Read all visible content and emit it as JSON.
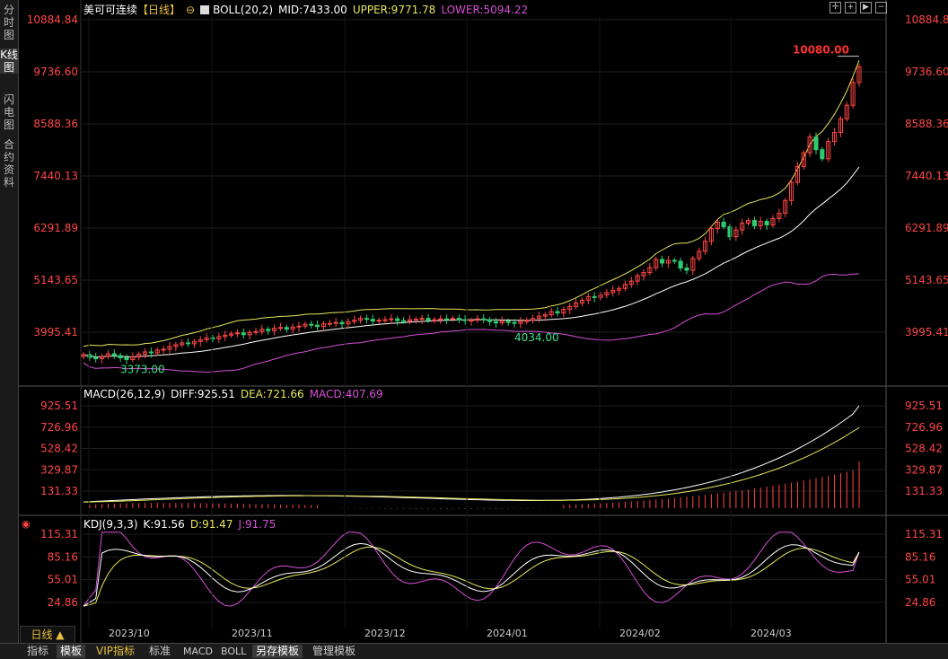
{
  "left_tabs": [
    {
      "label": "分时图",
      "active": false
    },
    {
      "label": "K线图",
      "active": true
    },
    {
      "label": "闪电图",
      "active": false
    },
    {
      "label": "合约资料",
      "active": false
    }
  ],
  "header": {
    "instrument": "美可可连续",
    "period": "【日线】",
    "boll": "BOLL(20,2)",
    "mid": "MID:7433.00",
    "upper": "UPPER:9771.78",
    "lower": "LOWER:5094.22"
  },
  "macd_header": {
    "name": "MACD(26,12,9)",
    "diff": "DIFF:925.51",
    "dea": "DEA:721.66",
    "macd": "MACD:407.69"
  },
  "kdj_header": {
    "name": "KDJ(9,3,3)",
    "k": "K:91.56",
    "d": "D:91.47",
    "j": "J:91.75"
  },
  "price_axis": [
    "10884.84",
    "9736.60",
    "8588.36",
    "7440.13",
    "6291.89",
    "5143.65",
    "3995.41"
  ],
  "macd_axis": [
    "925.51",
    "726.96",
    "528.42",
    "329.87",
    "131.33"
  ],
  "kdj_axis": [
    "115.31",
    "85.16",
    "55.01",
    "24.86"
  ],
  "date_labels": [
    "2023/10",
    "2023/11",
    "2023/12",
    "2024/01",
    "2024/02",
    "2024/03"
  ],
  "annotations": {
    "high": "10080.00",
    "low1": "3373.00",
    "low2": "4034.00"
  },
  "period_button": "日线 ▲",
  "bottom_tabs": [
    {
      "label": "指标",
      "active": false
    },
    {
      "label": "模板",
      "active": true
    },
    {
      "label": "VIP指标",
      "active": false,
      "accent": true
    },
    {
      "label": "标准",
      "active": false
    },
    {
      "label": "MACD",
      "active": false
    },
    {
      "label": "BOLL",
      "active": false
    },
    {
      "label": "另存模板",
      "active": true
    },
    {
      "label": "管理模板",
      "active": false
    }
  ],
  "toolbar_icons": [
    "crosshair-icon",
    "zoom-in-icon",
    "play-icon",
    "zoom-out-icon"
  ],
  "colors": {
    "up": "#ff4545",
    "down": "#2ecc71",
    "axis": "#ff4545",
    "mid": "#ffffff",
    "upper": "#e6e65a",
    "lower": "#d64fd6",
    "diff": "#ffffff",
    "dea": "#e6e65a",
    "k": "#ffffff",
    "d": "#e6e65a",
    "j": "#d64fd6",
    "annot_low": "#3ee08a"
  },
  "chart_data": {
    "type": "candlestick",
    "price_range": [
      3373.0,
      10884.84
    ],
    "closes": [
      3500,
      3440,
      3410,
      3460,
      3520,
      3480,
      3430,
      3390,
      3450,
      3510,
      3560,
      3540,
      3600,
      3620,
      3680,
      3720,
      3760,
      3740,
      3790,
      3830,
      3870,
      3850,
      3900,
      3930,
      3960,
      3980,
      3940,
      3990,
      4010,
      4060,
      4030,
      4080,
      4100,
      4060,
      4110,
      4130,
      4170,
      4150,
      4120,
      4180,
      4190,
      4210,
      4180,
      4230,
      4260,
      4300,
      4280,
      4240,
      4260,
      4270,
      4290,
      4250,
      4240,
      4270,
      4280,
      4300,
      4260,
      4270,
      4290,
      4280,
      4300,
      4270,
      4250,
      4260,
      4290,
      4270,
      4230,
      4200,
      4240,
      4210,
      4190,
      4230,
      4260,
      4300,
      4350,
      4380,
      4450,
      4420,
      4500,
      4560,
      4640,
      4700,
      4780,
      4760,
      4820,
      4870,
      4920,
      4960,
      5050,
      5120,
      5240,
      5310,
      5420,
      5600,
      5520,
      5580,
      5560,
      5410,
      5360,
      5620,
      5780,
      6000,
      6280,
      6420,
      6320,
      6100,
      6250,
      6400,
      6460,
      6340,
      6440,
      6360,
      6500,
      6620,
      6900,
      7300,
      7650,
      7950,
      8300,
      8020,
      7820,
      8200,
      8400,
      8700,
      9000,
      9500,
      9850
    ],
    "boll_mid_end": 7433.0,
    "boll_upper_end": 9771.78,
    "boll_lower_end": 5094.22,
    "high_price": 10080.0,
    "low_price_oct": 3373.0,
    "low_price_jan": 4034.0,
    "macd": {
      "diff": 925.51,
      "dea": 721.66,
      "macd": 407.69,
      "range": [
        0,
        925.51
      ]
    },
    "kdj": {
      "k": 91.56,
      "d": 91.47,
      "j": 91.75,
      "range": [
        0,
        115.31
      ]
    },
    "x_labels": [
      "2023/10",
      "2023/11",
      "2023/12",
      "2024/01",
      "2024/02",
      "2024/03"
    ]
  }
}
